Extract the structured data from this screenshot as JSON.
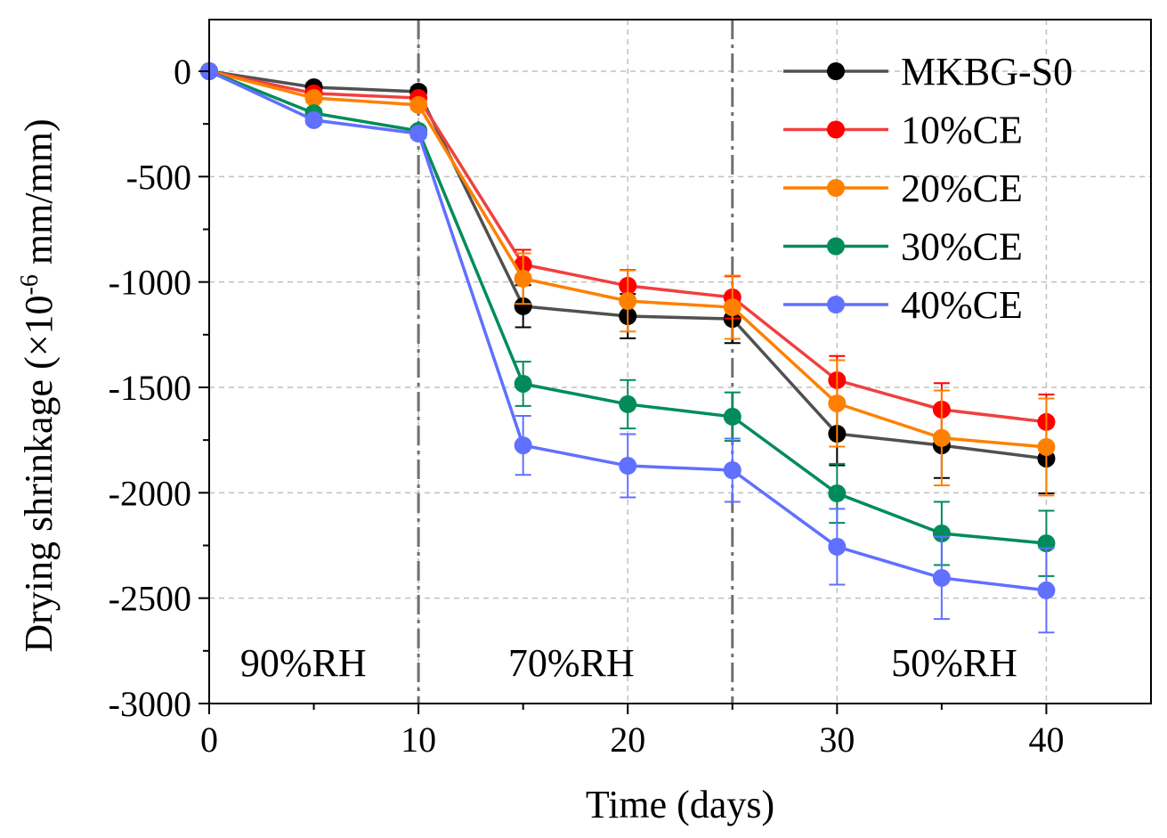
{
  "chart_data": {
    "type": "line",
    "title": "",
    "xlabel": "Time (days)",
    "ylabel_main": "Drying shrinkage (×10",
    "ylabel_exp": "-6",
    "ylabel_unit": " mm/mm)",
    "xlim": [
      0,
      45
    ],
    "ylim": [
      -3000,
      245
    ],
    "xticks": [
      0,
      10,
      20,
      30,
      40
    ],
    "yticks": [
      0,
      -500,
      -1000,
      -1500,
      -2000,
      -2500,
      -3000
    ],
    "xtick_labels": [
      "0",
      "10",
      "20",
      "30",
      "40"
    ],
    "ytick_labels": [
      "0",
      "-500",
      "-1000",
      "-1500",
      "-2000",
      "-2500",
      "-3000"
    ],
    "grid": true,
    "legend_position": "top-right",
    "x": [
      0,
      5,
      10,
      15,
      20,
      25,
      30,
      35,
      40
    ],
    "series": [
      {
        "name": "MKBG-S0",
        "color": "#000000",
        "line_color": "#505050",
        "values": [
          0,
          -76,
          -97,
          -1115,
          -1162,
          -1175,
          -1720,
          -1775,
          -1838
        ],
        "errors": [
          0,
          20,
          20,
          100,
          105,
          115,
          150,
          155,
          165
        ]
      },
      {
        "name": "10%CE",
        "color": "#ff0000",
        "line_color": "#f04040",
        "values": [
          0,
          -105,
          -127,
          -917,
          -1018,
          -1073,
          -1466,
          -1605,
          -1664
        ],
        "errors": [
          0,
          20,
          20,
          70,
          75,
          100,
          115,
          125,
          130
        ]
      },
      {
        "name": "20%CE",
        "color": "#ff8000",
        "line_color": "#ff8000",
        "values": [
          0,
          -127,
          -160,
          -984,
          -1090,
          -1120,
          -1576,
          -1740,
          -1783
        ],
        "errors": [
          0,
          20,
          20,
          120,
          145,
          150,
          205,
          225,
          230
        ]
      },
      {
        "name": "30%CE",
        "color": "#008c5a",
        "line_color": "#008c5a",
        "values": [
          0,
          -199,
          -283,
          -1483,
          -1580,
          -1639,
          -2003,
          -2193,
          -2240
        ],
        "errors": [
          0,
          20,
          20,
          105,
          115,
          115,
          140,
          150,
          155
        ]
      },
      {
        "name": "40%CE",
        "color": "#6070ff",
        "line_color": "#6070ff",
        "values": [
          0,
          -232,
          -296,
          -1775,
          -1872,
          -1893,
          -2256,
          -2404,
          -2463
        ],
        "errors": [
          0,
          20,
          20,
          140,
          150,
          150,
          180,
          195,
          200
        ]
      }
    ],
    "phase_dividers": [
      10,
      25
    ],
    "annotations": [
      {
        "text": "90%RH",
        "x": 4.5,
        "y": -2870
      },
      {
        "text": "70%RH",
        "x": 17.3,
        "y": -2870
      },
      {
        "text": "50%RH",
        "x": 35.6,
        "y": -2870
      }
    ]
  }
}
